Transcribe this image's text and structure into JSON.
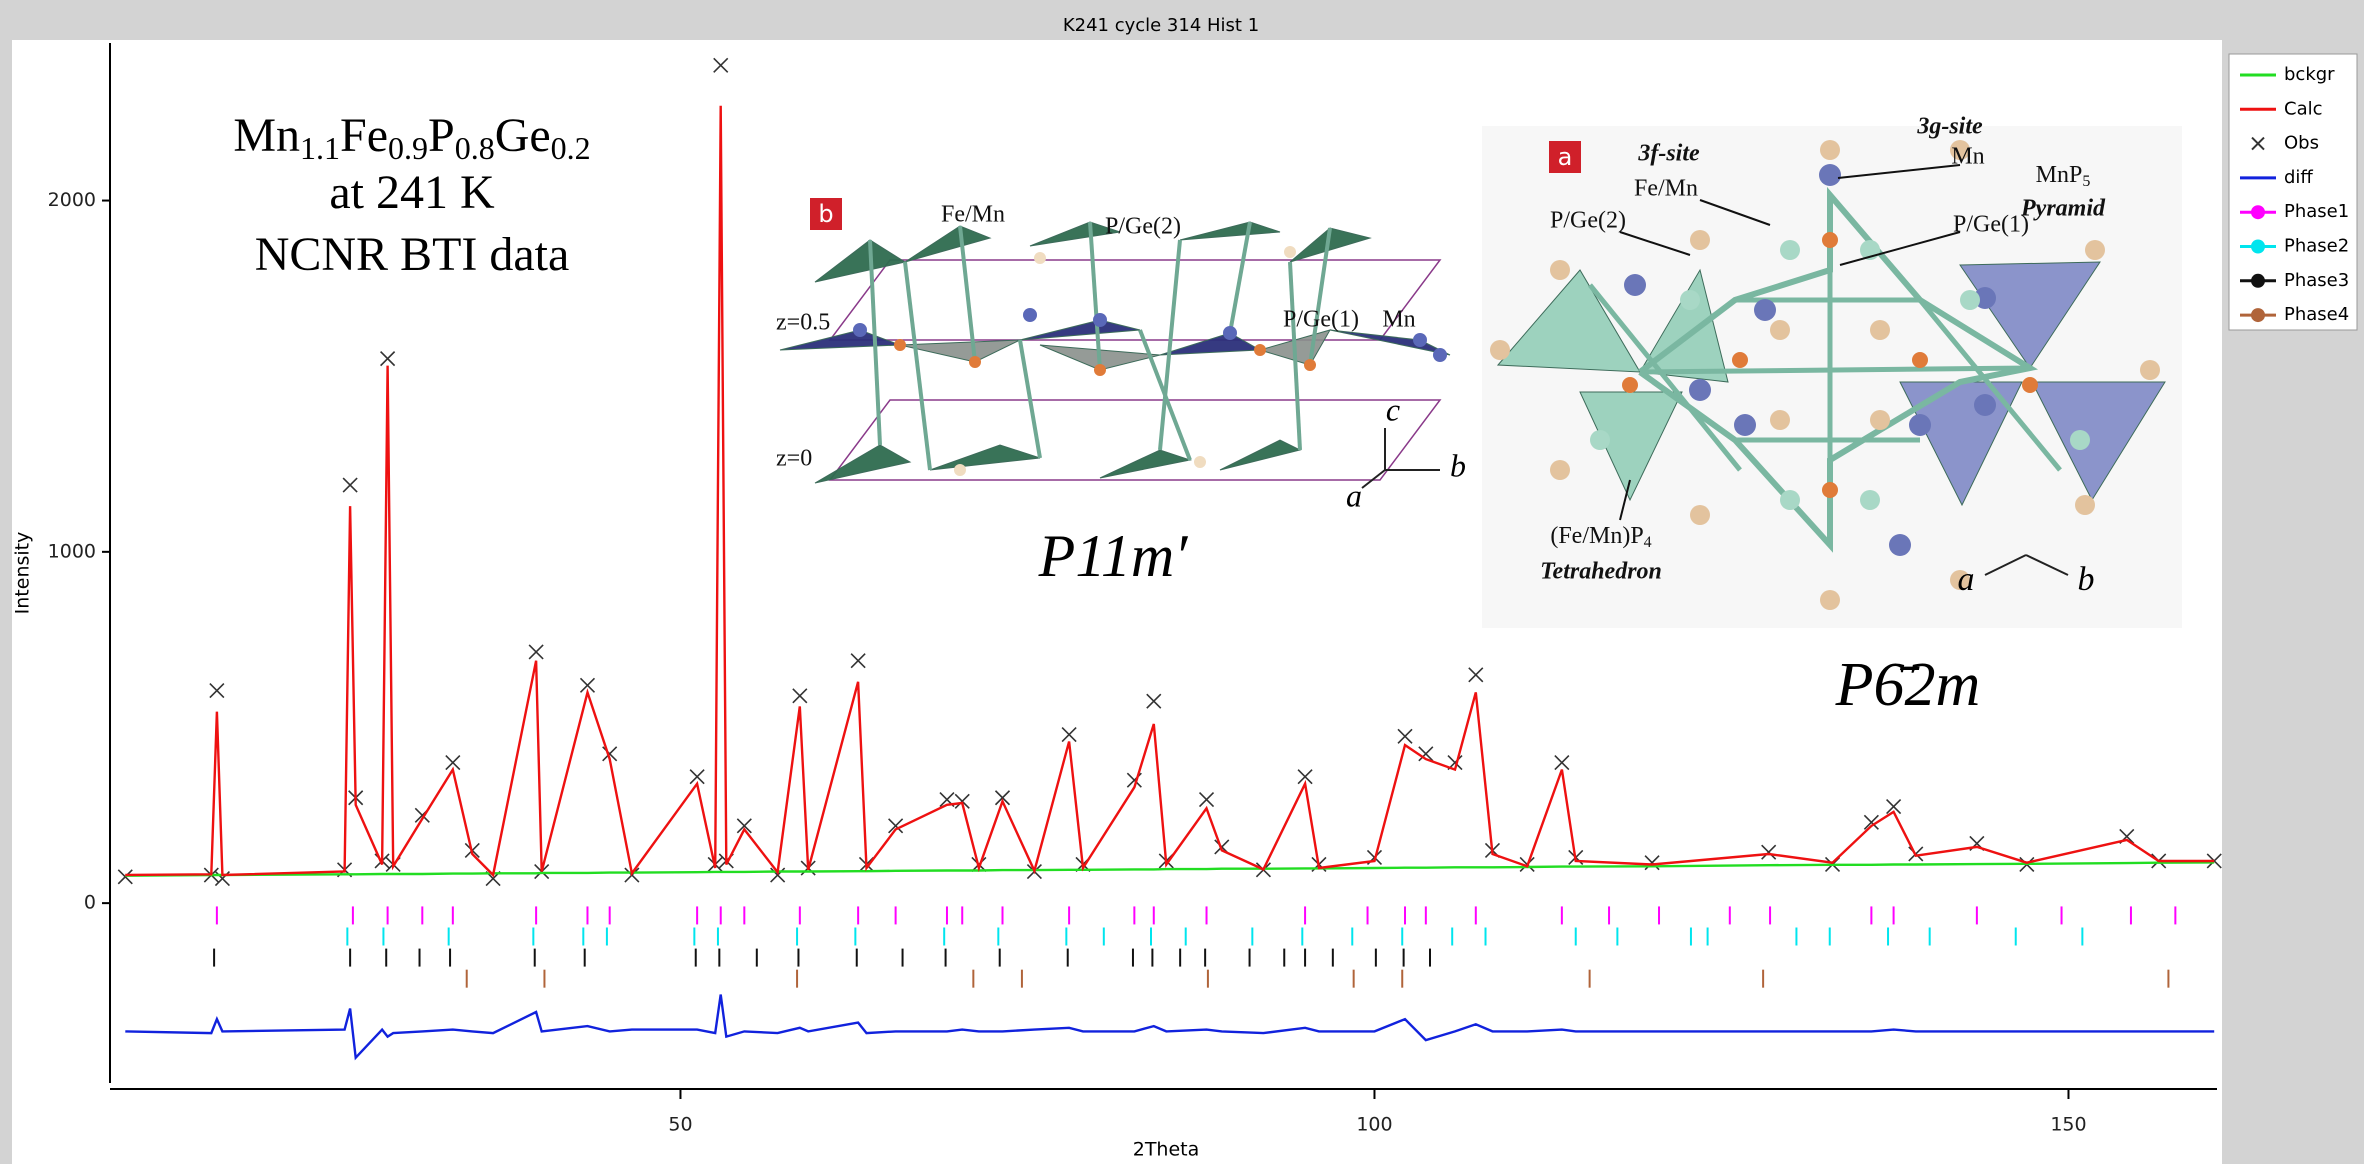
{
  "chart_data": {
    "type": "line",
    "title": "K241 cycle 314 Hist 1",
    "x_label": "2Theta",
    "y_label": "Intensity",
    "xlim": [
      8.9,
      160.7
    ],
    "xticks": [
      50,
      100,
      150
    ],
    "ylim": [
      -512,
      2420
    ],
    "yticks": [
      0,
      1000,
      2000
    ],
    "x": [
      10,
      16.2,
      16.6,
      17.0,
      25.8,
      26.2,
      26.6,
      28.5,
      28.9,
      29.3,
      31.4,
      33.6,
      35.0,
      36.5,
      39.6,
      40.0,
      43.3,
      44.9,
      46.5,
      51.2,
      52.5,
      52.9,
      53.3,
      54.6,
      57.0,
      58.6,
      59.2,
      62.8,
      63.4,
      65.5,
      69.2,
      70.3,
      71.5,
      73.2,
      75.5,
      78.0,
      79.0,
      82.7,
      84.1,
      85.0,
      87.9,
      89.0,
      92.0,
      95.0,
      96.0,
      100.0,
      102.2,
      103.7,
      105.8,
      107.3,
      108.5,
      111.0,
      113.5,
      114.5,
      120.0,
      128.4,
      133.0,
      135.8,
      137.4,
      139.0,
      143.4,
      147.0,
      154.2,
      156.5,
      160.5
    ],
    "series": [
      {
        "name": "bckgr",
        "color": "#22dd22",
        "values": [
          78,
          80,
          80,
          80,
          82,
          82,
          82,
          83,
          83,
          83,
          83,
          84,
          84,
          85,
          85,
          86,
          86,
          87,
          87,
          88,
          89,
          89,
          89,
          89,
          90,
          90,
          90,
          91,
          91,
          92,
          93,
          93,
          93,
          94,
          94,
          95,
          95,
          96,
          96,
          97,
          97,
          98,
          98,
          99,
          99,
          100,
          101,
          101,
          102,
          102,
          102,
          103,
          104,
          104,
          105,
          108,
          109,
          109,
          110,
          110,
          111,
          112,
          114,
          115,
          116
        ]
      },
      {
        "name": "Calc",
        "color": "#ee1111",
        "values": [
          80,
          82,
          545,
          80,
          90,
          1130,
          280,
          110,
          1530,
          105,
          240,
          380,
          140,
          80,
          690,
          90,
          600,
          410,
          85,
          340,
          100,
          2270,
          110,
          210,
          88,
          560,
          95,
          630,
          100,
          210,
          280,
          285,
          100,
          290,
          92,
          460,
          100,
          330,
          510,
          110,
          270,
          150,
          96,
          340,
          100,
          120,
          450,
          410,
          380,
          600,
          140,
          105,
          380,
          120,
          110,
          140,
          115,
          220,
          260,
          135,
          160,
          115,
          180,
          120,
          120
        ]
      },
      {
        "name": "Obs",
        "color": "#333333",
        "marker": "x",
        "values": [
          75,
          80,
          605,
          70,
          95,
          1190,
          300,
          120,
          1550,
          110,
          250,
          400,
          150,
          70,
          715,
          90,
          620,
          425,
          80,
          360,
          110,
          2385,
          120,
          220,
          80,
          590,
          100,
          690,
          110,
          220,
          295,
          290,
          110,
          300,
          90,
          480,
          110,
          350,
          575,
          120,
          295,
          160,
          95,
          360,
          110,
          130,
          475,
          425,
          400,
          650,
          150,
          110,
          400,
          130,
          115,
          145,
          110,
          230,
          275,
          140,
          170,
          110,
          190,
          120,
          120
        ]
      },
      {
        "name": "diff",
        "color": "#1122dd",
        "values": [
          -365,
          -370,
          -330,
          -365,
          -360,
          -300,
          -440,
          -360,
          -380,
          -370,
          -365,
          -360,
          -365,
          -370,
          -310,
          -365,
          -350,
          -365,
          -360,
          -360,
          -370,
          -260,
          -380,
          -365,
          -370,
          -355,
          -365,
          -340,
          -370,
          -365,
          -365,
          -360,
          -365,
          -365,
          -360,
          -355,
          -365,
          -365,
          -350,
          -365,
          -360,
          -365,
          -370,
          -355,
          -365,
          -365,
          -330,
          -390,
          -365,
          -345,
          -365,
          -365,
          -360,
          -365,
          -365,
          -365,
          -365,
          -365,
          -360,
          -365,
          -365,
          -365,
          -365,
          -365,
          -365
        ]
      },
      {
        "name": "Phase1",
        "color": "#ff00ff",
        "marker": "o",
        "offset": -35,
        "x": [
          16.6,
          26.4,
          28.9,
          31.4,
          33.6,
          39.6,
          43.3,
          44.9,
          51.2,
          52.9,
          54.6,
          58.6,
          62.8,
          65.5,
          69.2,
          70.3,
          73.2,
          78.0,
          82.7,
          84.1,
          87.9,
          95.0,
          99.5,
          102.2,
          103.7,
          107.3,
          113.5,
          116.9,
          120.5,
          125.6,
          128.5,
          135.8,
          137.4,
          143.4,
          149.5,
          154.5,
          157.7
        ]
      },
      {
        "name": "Phase2",
        "color": "#00e5ee",
        "marker": "o",
        "offset": -95,
        "x": [
          26.0,
          28.6,
          33.3,
          39.4,
          43.0,
          44.7,
          51.0,
          52.7,
          58.4,
          62.6,
          69.0,
          72.9,
          77.8,
          80.5,
          83.9,
          86.4,
          91.2,
          94.8,
          98.4,
          102.0,
          105.6,
          108.0,
          114.5,
          117.5,
          122.8,
          124.0,
          130.4,
          132.8,
          137.0,
          140.0,
          146.2,
          151.0
        ]
      },
      {
        "name": "Phase3",
        "color": "#111111",
        "marker": "o",
        "offset": -155,
        "x": [
          16.4,
          26.2,
          28.8,
          31.2,
          33.4,
          39.5,
          43.1,
          51.1,
          52.8,
          55.5,
          58.5,
          62.7,
          66.0,
          69.1,
          73.0,
          77.9,
          82.6,
          84.0,
          86.0,
          87.8,
          91.0,
          93.5,
          95.0,
          97.0,
          100.1,
          102.1,
          104.0
        ]
      },
      {
        "name": "Phase4",
        "color": "#b0643a",
        "marker": "o",
        "offset": -215,
        "x": [
          34.6,
          40.2,
          58.4,
          71.1,
          74.6,
          88.0,
          98.5,
          102.0,
          115.5,
          128.0,
          157.2
        ]
      }
    ]
  },
  "annotations": {
    "formula": [
      "Mn",
      "1.1",
      "Fe",
      "0.9",
      "P",
      "0.8",
      "Ge",
      "0.2"
    ],
    "formula_lines": [
      "at 241 K",
      "NCNR BTI data"
    ],
    "panel_b": {
      "tag": "b",
      "fe_mn": "Fe/Mn",
      "p_ge2": "P/Ge(2)",
      "z_half": "z=0.5",
      "p_ge1": "P/Ge(1)",
      "mn": "Mn",
      "z_zero": "z=0",
      "axis_c": "c",
      "axis_a": "a",
      "axis_b": "b",
      "group": "P11m′"
    },
    "panel_a": {
      "tag": "a",
      "site_3f": "3f-site",
      "fe_mn": "Fe/Mn",
      "site_3g": "3g-site",
      "mn": "Mn",
      "pyramid_formula": [
        "MnP",
        "5"
      ],
      "pyramid": "Pyramid",
      "p_ge2": "P/Ge(2)",
      "p_ge1": "P/Ge(1)",
      "tetra_formula": [
        "(Fe/Mn)P",
        "4"
      ],
      "tetra": "Tetrahedron",
      "axis_a": "a",
      "axis_b": "b",
      "group": "P6̄2m"
    }
  }
}
